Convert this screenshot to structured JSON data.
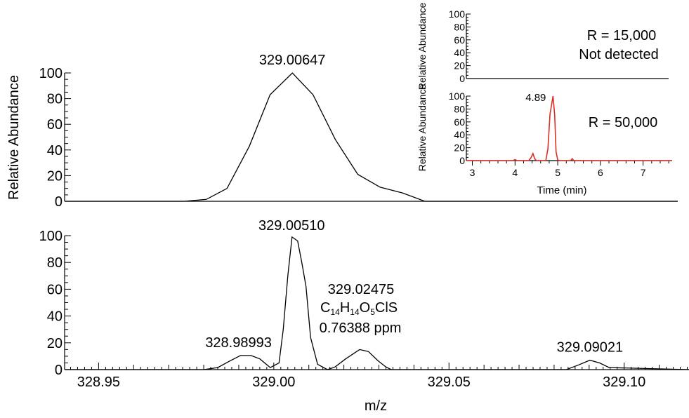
{
  "chart_data": [
    {
      "id": "top",
      "type": "line",
      "ylabel": "Relative Abundance",
      "ylim": [
        0,
        100
      ],
      "yticks": [
        "0",
        "20",
        "40",
        "60",
        "80",
        "100"
      ],
      "xlim": [
        328.9403,
        329.1185
      ],
      "line_color": "#000000",
      "points": [
        [
          328.9403,
          0
        ],
        [
          328.965,
          0
        ],
        [
          328.975,
          0
        ],
        [
          328.9815,
          1.5
        ],
        [
          328.9875,
          10
        ],
        [
          328.994,
          43
        ],
        [
          329.0,
          83
        ],
        [
          329.0065,
          100
        ],
        [
          329.0125,
          83
        ],
        [
          329.019,
          48
        ],
        [
          329.0255,
          21
        ],
        [
          329.032,
          11
        ],
        [
          329.0385,
          6.5
        ],
        [
          329.045,
          0
        ],
        [
          329.08,
          0
        ],
        [
          329.1185,
          0
        ]
      ],
      "annotations": [
        {
          "x": 329.00647,
          "y": 100,
          "text": "329.00647"
        }
      ]
    },
    {
      "id": "bottom",
      "type": "line",
      "xlabel": "m/z",
      "ylim": [
        0,
        100
      ],
      "yticks": [
        "0",
        "20",
        "40",
        "60",
        "80",
        "100"
      ],
      "xlim": [
        328.9403,
        329.1185
      ],
      "xticks": [
        328.95,
        329.0,
        329.05,
        329.1
      ],
      "xtick_labels": [
        "328.95",
        "329.00",
        "329.05",
        "329.10"
      ],
      "line_color": "#000000",
      "points": [
        [
          328.9403,
          0
        ],
        [
          328.98,
          0
        ],
        [
          328.984,
          1.5
        ],
        [
          328.9875,
          6.5
        ],
        [
          328.9905,
          10.5
        ],
        [
          328.9935,
          10.5
        ],
        [
          328.996,
          8
        ],
        [
          328.999,
          1.5
        ],
        [
          329.0015,
          5
        ],
        [
          329.0027,
          30
        ],
        [
          329.004,
          70
        ],
        [
          329.0052,
          99
        ],
        [
          329.0068,
          96
        ],
        [
          329.008,
          80
        ],
        [
          329.0092,
          62
        ],
        [
          329.0105,
          24
        ],
        [
          329.0125,
          4
        ],
        [
          329.0153,
          0
        ],
        [
          329.0175,
          2
        ],
        [
          329.0205,
          8
        ],
        [
          329.0245,
          15
        ],
        [
          329.027,
          13.5
        ],
        [
          329.0298,
          6.5
        ],
        [
          329.032,
          2
        ],
        [
          329.0335,
          0
        ],
        [
          329.08,
          0
        ],
        [
          329.0835,
          0
        ],
        [
          329.087,
          3.5
        ],
        [
          329.0902,
          7
        ],
        [
          329.093,
          5
        ],
        [
          329.0957,
          1.5
        ],
        [
          329.1185,
          0
        ]
      ],
      "annotations": [
        {
          "x": 328.98993,
          "y": 10.5,
          "text": "328.98993"
        },
        {
          "x": 329.0051,
          "y": 99,
          "text": "329.00510"
        },
        {
          "x": 329.09021,
          "y": 7,
          "text": "329.09021"
        }
      ],
      "formula_annotation": {
        "mass": "329.02475",
        "formula_parts": [
          [
            "C",
            "14"
          ],
          [
            "H",
            "14"
          ],
          [
            "O",
            "5"
          ],
          [
            "ClS",
            ""
          ]
        ],
        "ppm": "0.76388 ppm"
      }
    },
    {
      "id": "inset_top",
      "type": "line",
      "ylabel": "Relative Abundance",
      "ylim": [
        0,
        100
      ],
      "yticks": [
        "0",
        "20",
        "40",
        "60",
        "80",
        "100"
      ],
      "line_color": "#000000",
      "points": [
        [
          0,
          0
        ],
        [
          1,
          0
        ]
      ],
      "texts": [
        "R = 15,000",
        "Not detected"
      ]
    },
    {
      "id": "inset_bottom",
      "type": "line",
      "ylabel": "Relative Abundance",
      "xlabel": "Time (min)",
      "ylim": [
        0,
        100
      ],
      "yticks": [
        "0",
        "20",
        "40",
        "60",
        "80",
        "100"
      ],
      "xlim": [
        2.86,
        7.68
      ],
      "xticks": [
        "3",
        "4",
        "5",
        "6",
        "7"
      ],
      "line_color": "#d93025",
      "points": [
        [
          2.86,
          0
        ],
        [
          3.95,
          0
        ],
        [
          4.0,
          1.5
        ],
        [
          4.05,
          0
        ],
        [
          4.32,
          0
        ],
        [
          4.37,
          4
        ],
        [
          4.42,
          11
        ],
        [
          4.46,
          3
        ],
        [
          4.5,
          0
        ],
        [
          4.72,
          0
        ],
        [
          4.77,
          18
        ],
        [
          4.82,
          72
        ],
        [
          4.89,
          100
        ],
        [
          4.93,
          70
        ],
        [
          4.96,
          14
        ],
        [
          5.0,
          1
        ],
        [
          5.05,
          0
        ],
        [
          5.3,
          0
        ],
        [
          5.34,
          3
        ],
        [
          5.38,
          0
        ],
        [
          7.68,
          0
        ]
      ],
      "texts": [
        "R = 50,000"
      ],
      "annotations": [
        {
          "x": 4.89,
          "y": 100,
          "text": "4.89"
        }
      ]
    }
  ]
}
